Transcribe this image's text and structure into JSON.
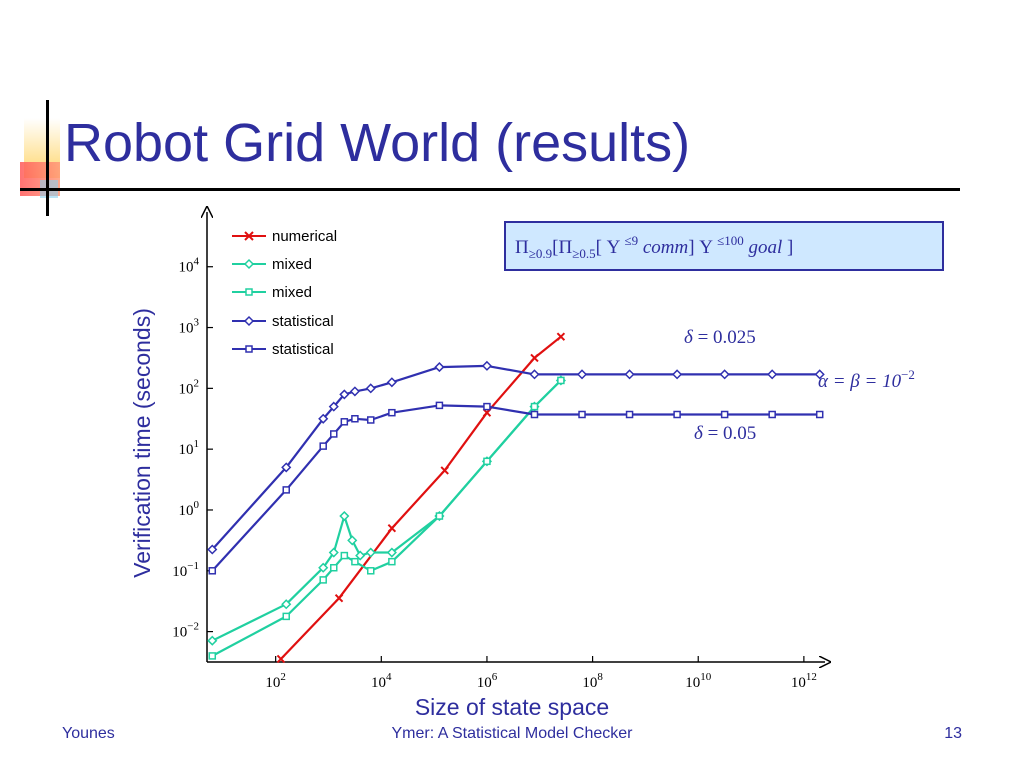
{
  "slide": {
    "title": "Robot Grid World (results)",
    "footer_left": "Younes",
    "footer_center": "Ymer: A Statistical Model Checker",
    "footer_right": "13"
  },
  "colors": {
    "title": "#2e2e9e",
    "numerical": "#e01010",
    "mixed": "#20d0a0",
    "statistical": "#3030b0",
    "formula_bg": "#cfe8ff",
    "formula_border": "#2e2e9e"
  },
  "chart_data": {
    "type": "line",
    "xlabel": "Size of state space",
    "ylabel": "Verification time (seconds)",
    "xscale": "log",
    "yscale": "log",
    "xlim_exp": [
      0.7,
      12.4
    ],
    "ylim_exp": [
      -2.5,
      4.9
    ],
    "x_ticks": [
      {
        "base": "10",
        "exp": "2"
      },
      {
        "base": "10",
        "exp": "4"
      },
      {
        "base": "10",
        "exp": "6"
      },
      {
        "base": "10",
        "exp": "8"
      },
      {
        "base": "10",
        "exp": "10"
      },
      {
        "base": "10",
        "exp": "12"
      }
    ],
    "x_tick_values": [
      2,
      4,
      6,
      8,
      10,
      12
    ],
    "y_ticks": [
      {
        "base": "10",
        "exp": "−2"
      },
      {
        "base": "10",
        "exp": "−1"
      },
      {
        "base": "10",
        "exp": "0"
      },
      {
        "base": "10",
        "exp": "1"
      },
      {
        "base": "10",
        "exp": "2"
      },
      {
        "base": "10",
        "exp": "3"
      },
      {
        "base": "10",
        "exp": "4"
      }
    ],
    "y_tick_values": [
      -2,
      -1,
      0,
      1,
      2,
      3,
      4
    ],
    "legend_position": "top-left",
    "series": [
      {
        "name": "numerical",
        "color": "#e01010",
        "marker": "x",
        "x": [
          2.1,
          3.2,
          4.2,
          5.2,
          6.0,
          6.9,
          7.4
        ],
        "y": [
          -2.45,
          -1.45,
          -0.3,
          0.65,
          1.6,
          2.5,
          2.85
        ]
      },
      {
        "name": "mixed",
        "color": "#20d0a0",
        "marker": "diamond",
        "x": [
          0.8,
          2.2,
          2.9,
          3.1,
          3.3,
          3.45,
          3.6,
          3.8,
          4.2,
          5.1,
          6.0,
          6.9,
          7.4
        ],
        "y": [
          -2.15,
          -1.55,
          -0.95,
          -0.7,
          -0.1,
          -0.5,
          -0.75,
          -0.7,
          -0.7,
          -0.1,
          0.8,
          1.7,
          2.13
        ]
      },
      {
        "name": "mixed",
        "color": "#20d0a0",
        "marker": "square",
        "x": [
          0.8,
          2.2,
          2.9,
          3.1,
          3.3,
          3.5,
          3.8,
          4.2,
          5.1,
          6.0,
          6.9,
          7.4
        ],
        "y": [
          -2.4,
          -1.75,
          -1.15,
          -0.95,
          -0.75,
          -0.85,
          -1.0,
          -0.85,
          -0.1,
          0.8,
          1.7,
          2.13
        ]
      },
      {
        "name": "statistical",
        "color": "#3030b0",
        "marker": "diamond",
        "x": [
          0.8,
          2.2,
          2.9,
          3.1,
          3.3,
          3.5,
          3.8,
          4.2,
          5.1,
          6.0,
          6.9,
          7.8,
          8.7,
          9.6,
          10.5,
          11.4,
          12.3
        ],
        "y": [
          -0.65,
          0.7,
          1.5,
          1.7,
          1.9,
          1.95,
          2.0,
          2.1,
          2.35,
          2.37,
          2.23,
          2.23,
          2.23,
          2.23,
          2.23,
          2.23,
          2.23
        ]
      },
      {
        "name": "statistical",
        "color": "#3030b0",
        "marker": "square",
        "x": [
          0.8,
          2.2,
          2.9,
          3.1,
          3.3,
          3.5,
          3.8,
          4.2,
          5.1,
          6.0,
          6.9,
          7.8,
          8.7,
          9.6,
          10.5,
          11.4,
          12.3
        ],
        "y": [
          -1.0,
          0.33,
          1.05,
          1.25,
          1.45,
          1.5,
          1.48,
          1.6,
          1.72,
          1.7,
          1.57,
          1.57,
          1.57,
          1.57,
          1.57,
          1.57,
          1.57
        ]
      }
    ],
    "formula": {
      "pi1": "Π",
      "sub1": "≥0.9",
      "open1": "[",
      "pi2": "Π",
      "sub2": "≥0.5",
      "open2": "[",
      "box": "",
      "u1": " Y ",
      "sup1": "≤9",
      "comm": " comm",
      "close1": "] ",
      "u2": "Y ",
      "sup2": "≤100",
      "goal": " goal ",
      "close2": "]"
    },
    "annotations": {
      "delta1_sym": "δ",
      "delta1_val": " = 0.025",
      "alpha_beta": "α = β = 10",
      "alpha_beta_exp": "−2",
      "delta2_sym": "δ",
      "delta2_val": " = 0.05"
    }
  }
}
